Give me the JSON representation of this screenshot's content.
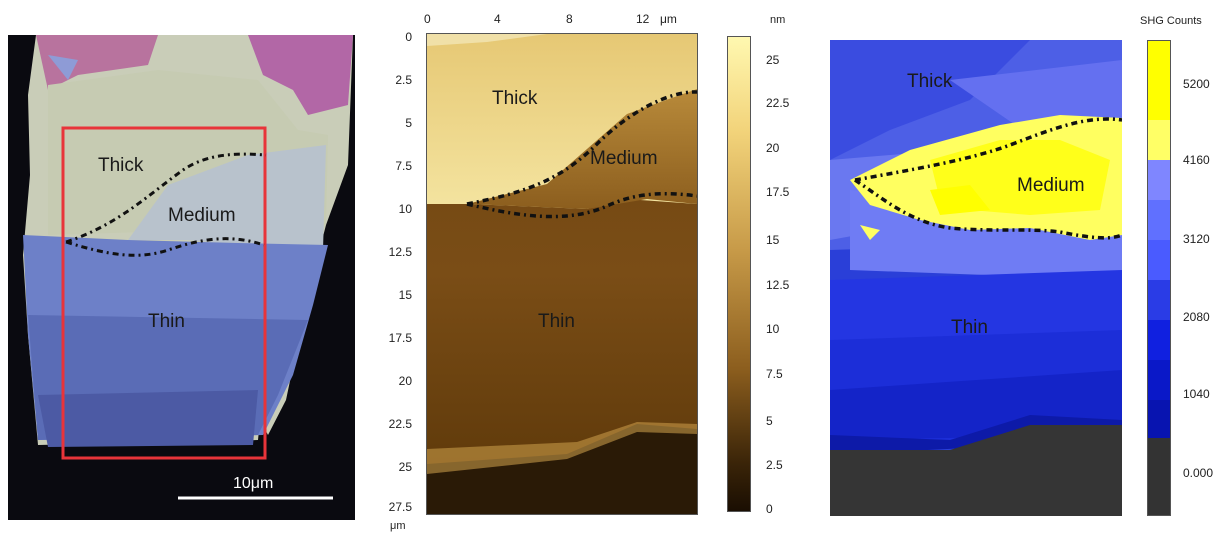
{
  "panel_optical": {
    "regions": [
      "Thick",
      "Medium",
      "Thin"
    ],
    "scale_bar": "10μm"
  },
  "panel_afm": {
    "regions": [
      "Thick",
      "Medium",
      "Thin"
    ],
    "x_ticks": [
      "0",
      "4",
      "8",
      "12"
    ],
    "x_unit": "μm",
    "y_ticks": [
      "0",
      "2.5",
      "5",
      "7.5",
      "10",
      "12.5",
      "15",
      "17.5",
      "20",
      "22.5",
      "25",
      "27.5"
    ],
    "y_unit": "μm",
    "colorbar_unit": "nm",
    "colorbar_ticks": [
      "25",
      "22.5",
      "20",
      "17.5",
      "15",
      "12.5",
      "10",
      "7.5",
      "5",
      "2.5",
      "0"
    ]
  },
  "panel_shg": {
    "regions": [
      "Thick",
      "Medium",
      "Thin"
    ],
    "colorbar_title": "SHG Counts",
    "colorbar_ticks": [
      "5200",
      "4160",
      "3120",
      "2080",
      "1040",
      "0.000"
    ],
    "colorbar_colors": [
      "#ffff00",
      "#ffff66",
      "#7f86ff",
      "#6070ff",
      "#3a4bff",
      "#2a3ce6",
      "#1020e0",
      "#0a18c8",
      "#0814b0",
      "#23318c",
      "#333333",
      "#333333"
    ]
  }
}
